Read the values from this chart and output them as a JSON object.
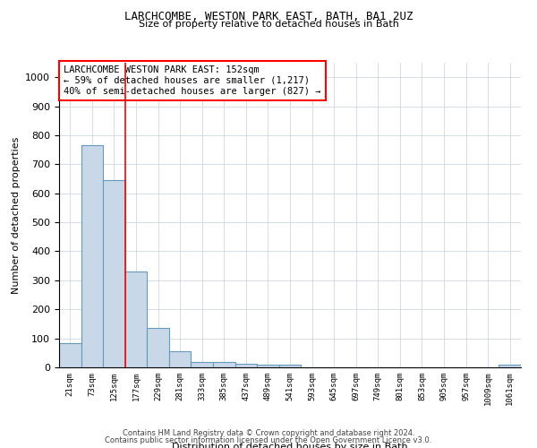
{
  "title1": "LARCHCOMBE, WESTON PARK EAST, BATH, BA1 2UZ",
  "title2": "Size of property relative to detached houses in Bath",
  "xlabel": "Distribution of detached houses by size in Bath",
  "ylabel": "Number of detached properties",
  "categories": [
    "21sqm",
    "73sqm",
    "125sqm",
    "177sqm",
    "229sqm",
    "281sqm",
    "333sqm",
    "385sqm",
    "437sqm",
    "489sqm",
    "541sqm",
    "593sqm",
    "645sqm",
    "697sqm",
    "749sqm",
    "801sqm",
    "853sqm",
    "905sqm",
    "957sqm",
    "1009sqm",
    "1061sqm"
  ],
  "values": [
    83,
    765,
    645,
    330,
    135,
    55,
    20,
    18,
    12,
    8,
    10,
    0,
    0,
    0,
    0,
    0,
    0,
    0,
    0,
    0,
    8
  ],
  "bar_color": "#c8d8e8",
  "bar_edge_color": "#6699bb",
  "red_line_x": 2.5,
  "annotation_line1": "LARCHCOMBE WESTON PARK EAST: 152sqm",
  "annotation_line2": "← 59% of detached houses are smaller (1,217)",
  "annotation_line3": "40% of semi-detached houses are larger (827) →",
  "ylim": [
    0,
    1050
  ],
  "yticks": [
    0,
    100,
    200,
    300,
    400,
    500,
    600,
    700,
    800,
    900,
    1000
  ],
  "footer1": "Contains HM Land Registry data © Crown copyright and database right 2024.",
  "footer2": "Contains public sector information licensed under the Open Government Licence v3.0.",
  "bg_color": "#ffffff",
  "grid_color": "#c8d0dc"
}
